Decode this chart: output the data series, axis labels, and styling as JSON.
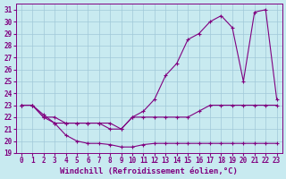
{
  "xlabel": "Windchill (Refroidissement éolien,°C)",
  "ylabel": "",
  "background_color": "#c8eaf0",
  "grid_color": "#a0c8d8",
  "line_color": "#800080",
  "xlim": [
    -0.5,
    23.5
  ],
  "ylim": [
    19,
    31.5
  ],
  "yticks": [
    19,
    20,
    21,
    22,
    23,
    24,
    25,
    26,
    27,
    28,
    29,
    30,
    31
  ],
  "xticks": [
    0,
    1,
    2,
    3,
    4,
    5,
    6,
    7,
    8,
    9,
    10,
    11,
    12,
    13,
    14,
    15,
    16,
    17,
    18,
    19,
    20,
    21,
    22,
    23
  ],
  "series": [
    {
      "x": [
        0,
        1,
        2,
        3,
        4,
        5,
        6,
        7,
        8,
        9,
        10,
        11,
        12,
        13,
        14,
        15,
        16,
        17,
        18,
        19,
        20,
        21,
        22,
        23
      ],
      "y": [
        23.0,
        23.0,
        22.0,
        21.5,
        20.5,
        20.0,
        19.8,
        19.8,
        19.7,
        19.5,
        19.5,
        19.7,
        19.8,
        19.8,
        19.8,
        19.8,
        19.8,
        19.8,
        19.8,
        19.8,
        19.8,
        19.8,
        19.8,
        19.8
      ]
    },
    {
      "x": [
        0,
        1,
        2,
        3,
        4,
        5,
        6,
        7,
        8,
        9,
        10,
        11,
        12,
        13,
        14,
        15,
        16,
        17,
        18,
        19,
        20,
        21,
        22,
        23
      ],
      "y": [
        23.0,
        23.0,
        22.0,
        22.0,
        21.5,
        21.5,
        21.5,
        21.5,
        21.5,
        21.0,
        22.0,
        22.0,
        22.0,
        22.0,
        22.0,
        22.0,
        22.5,
        23.0,
        23.0,
        23.0,
        23.0,
        23.0,
        23.0,
        23.0
      ]
    },
    {
      "x": [
        0,
        1,
        2,
        3,
        4,
        5,
        6,
        7,
        8,
        9,
        10,
        11,
        12,
        13,
        14,
        15,
        16,
        17,
        18,
        19,
        20,
        21,
        22,
        23
      ],
      "y": [
        23.0,
        23.0,
        22.2,
        21.5,
        21.5,
        21.5,
        21.5,
        21.5,
        21.0,
        21.0,
        22.0,
        22.5,
        23.5,
        25.5,
        26.5,
        28.5,
        29.0,
        30.0,
        30.5,
        29.5,
        25.0,
        30.8,
        31.0,
        23.5
      ]
    }
  ],
  "figsize": [
    3.2,
    2.0
  ],
  "dpi": 100,
  "tick_fontsize": 5.5,
  "xlabel_fontsize": 6.5,
  "spine_color": "#800080"
}
